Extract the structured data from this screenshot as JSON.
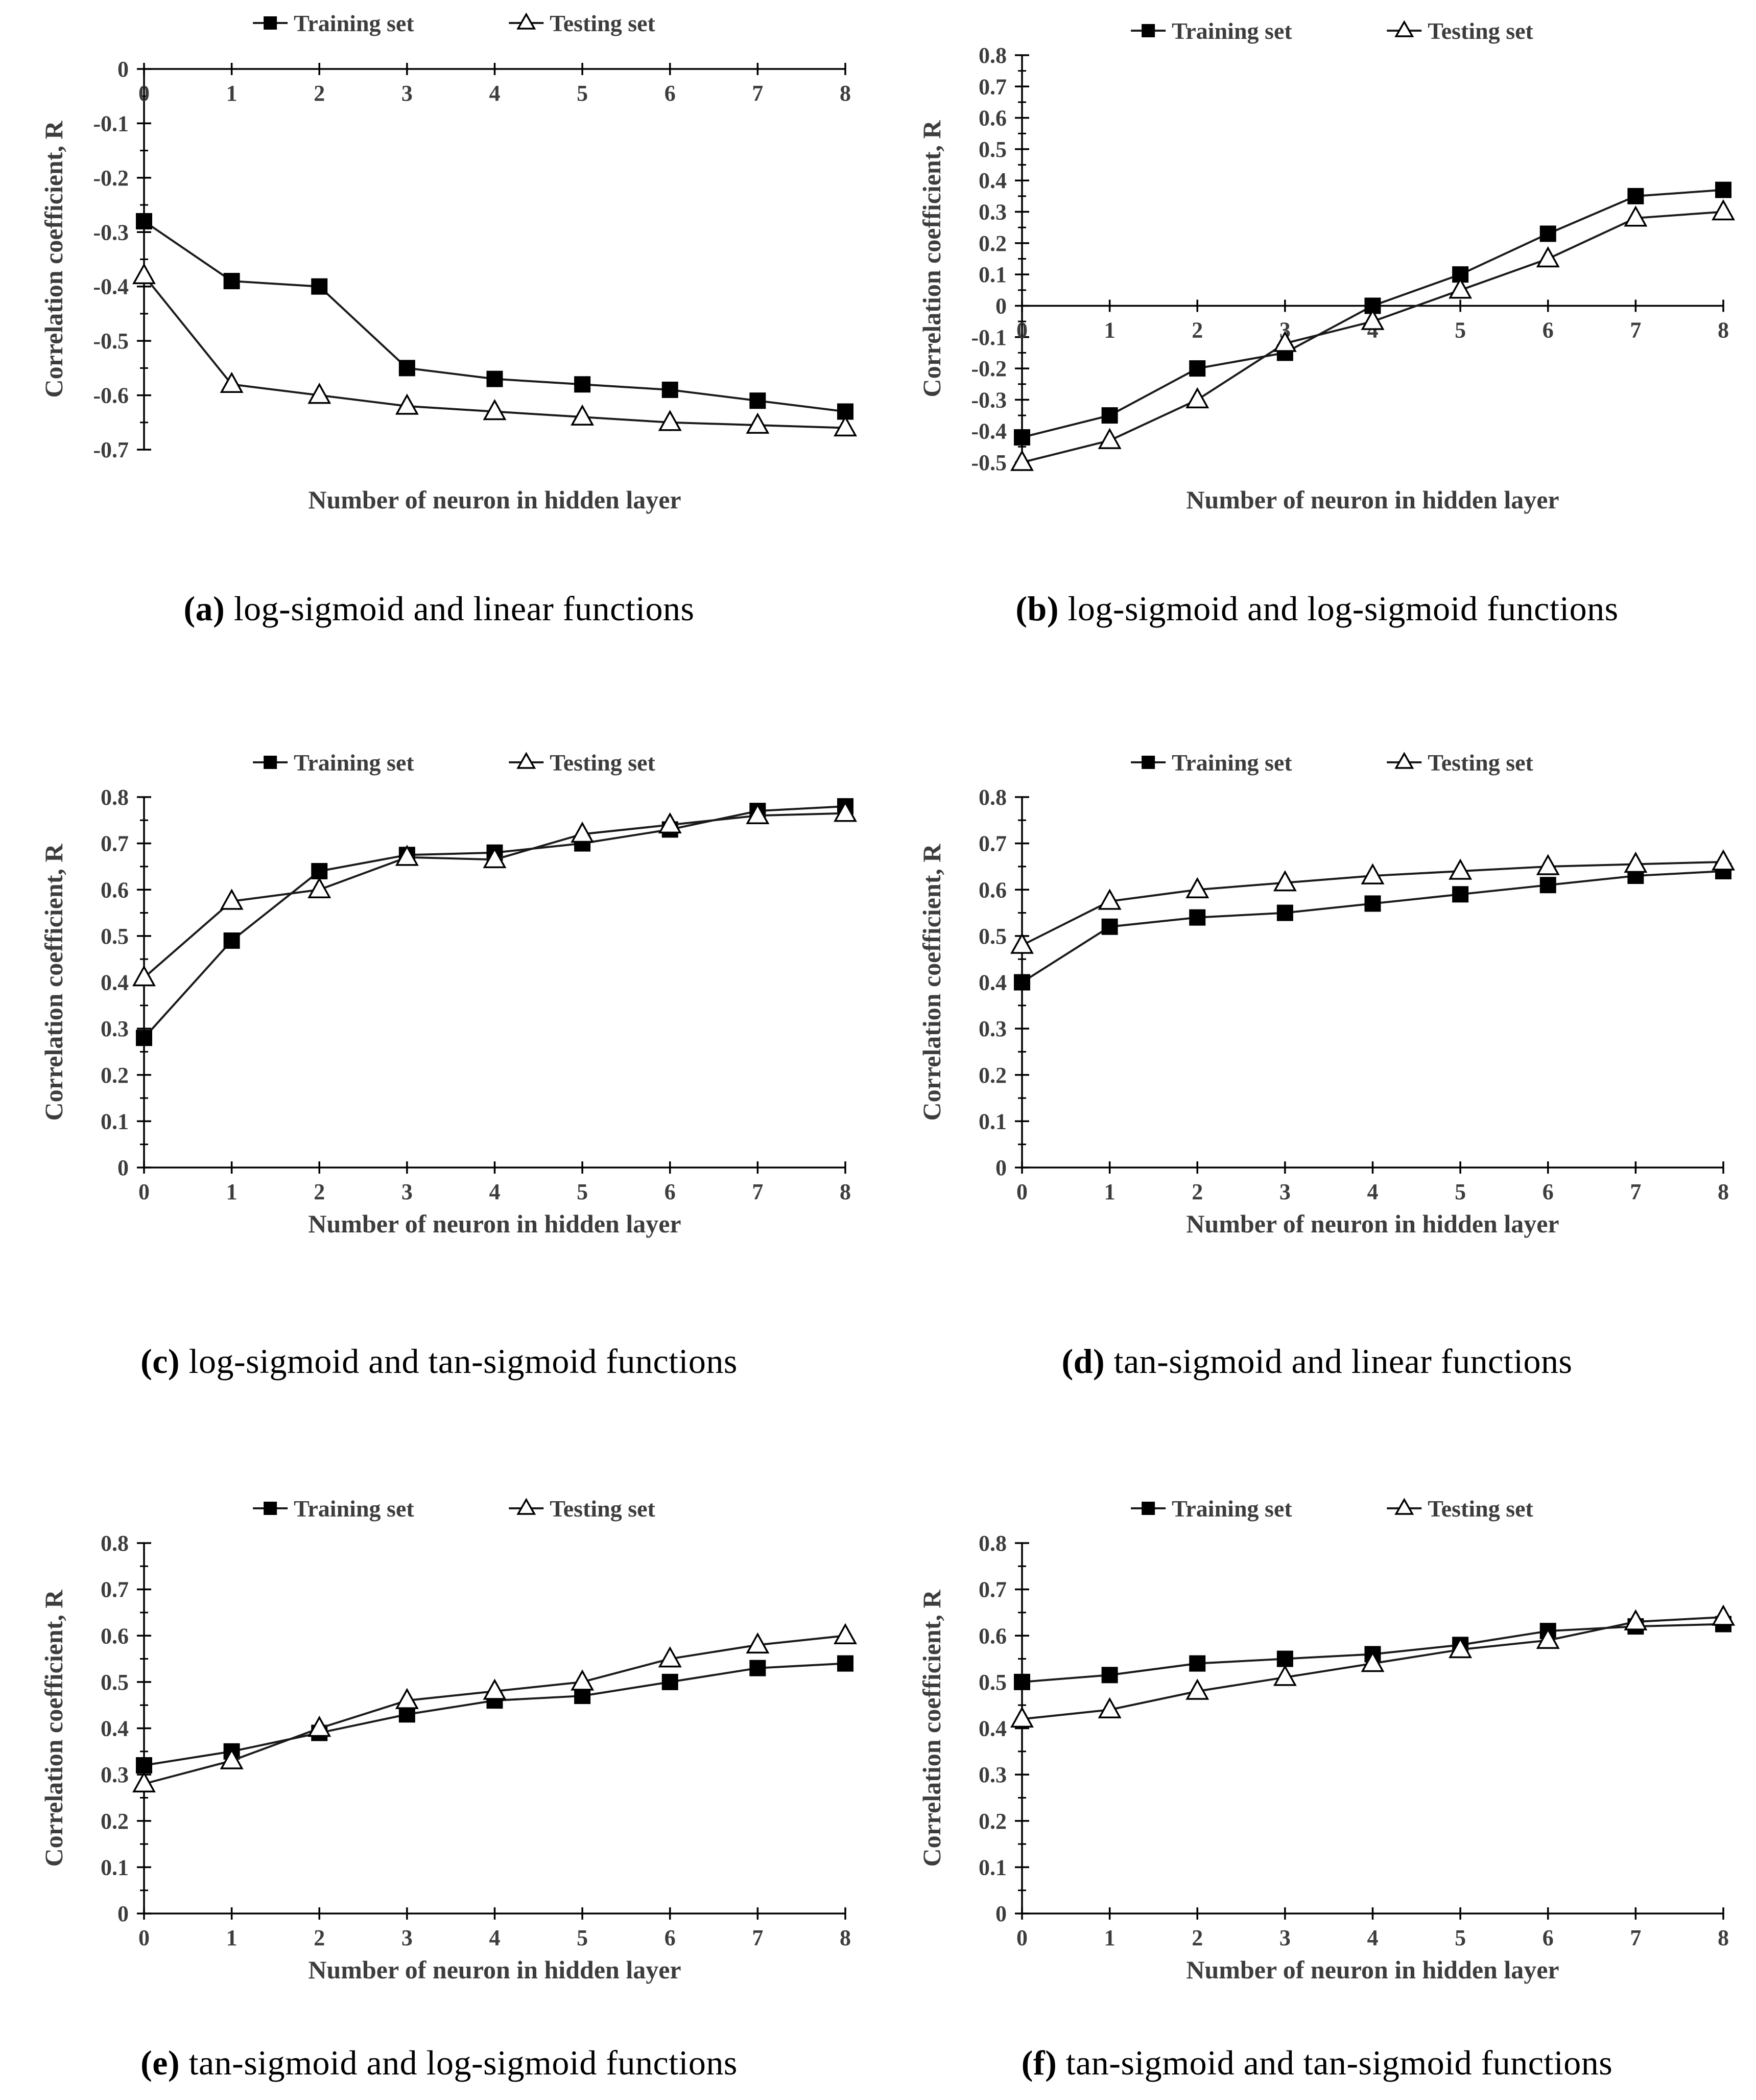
{
  "figure": {
    "x_axis_title": "Number of neuron in hidden layer",
    "y_axis_title": "Correlation coefficient, R",
    "legend": {
      "training_label": "Training set",
      "testing_label": "Testing set"
    },
    "colors": {
      "line": "#1a1a1a",
      "axis": "#000000",
      "text": "#3d3d3d",
      "marker_fill": "#000000",
      "marker_open_fill": "#ffffff",
      "background": "#ffffff"
    }
  },
  "chart_data": [
    {
      "id": "a",
      "type": "line",
      "caption_label": "(a)",
      "caption_text": "log-sigmoid and linear functions",
      "xlabel": "Number of neuron in hidden layer",
      "ylabel": "Correlation coefficient, R",
      "x": [
        0,
        1,
        2,
        3,
        4,
        5,
        6,
        7,
        8
      ],
      "xlim": [
        0,
        8
      ],
      "ylim": [
        -0.7,
        0
      ],
      "yticks": [
        0,
        -0.1,
        -0.2,
        -0.3,
        -0.4,
        -0.5,
        -0.6,
        -0.7
      ],
      "grid": false,
      "legend_position": "top",
      "series": [
        {
          "name": "Training set",
          "marker": "square",
          "values": [
            -0.28,
            -0.39,
            -0.4,
            -0.55,
            -0.57,
            -0.58,
            -0.59,
            -0.61,
            -0.63
          ]
        },
        {
          "name": "Testing set",
          "marker": "triangle",
          "values": [
            -0.38,
            -0.58,
            -0.6,
            -0.62,
            -0.63,
            -0.64,
            -0.65,
            -0.655,
            -0.66
          ]
        }
      ]
    },
    {
      "id": "b",
      "type": "line",
      "caption_label": "(b)",
      "caption_text": "log-sigmoid and log-sigmoid functions",
      "xlabel": "Number of neuron in hidden layer",
      "ylabel": "Correlation coefficient, R",
      "x": [
        0,
        1,
        2,
        3,
        4,
        5,
        6,
        7,
        8
      ],
      "xlim": [
        0,
        8
      ],
      "ylim": [
        -0.5,
        0.8
      ],
      "yticks": [
        0.8,
        0.7,
        0.6,
        0.5,
        0.4,
        0.3,
        0.2,
        0.1,
        0,
        -0.1,
        -0.2,
        -0.3,
        -0.4,
        -0.5
      ],
      "grid": false,
      "legend_position": "top",
      "series": [
        {
          "name": "Training set",
          "marker": "square",
          "values": [
            -0.42,
            -0.35,
            -0.2,
            -0.15,
            0.0,
            0.1,
            0.23,
            0.35,
            0.37
          ]
        },
        {
          "name": "Testing set",
          "marker": "triangle",
          "values": [
            -0.5,
            -0.43,
            -0.3,
            -0.12,
            -0.05,
            0.05,
            0.15,
            0.28,
            0.3
          ]
        }
      ]
    },
    {
      "id": "c",
      "type": "line",
      "caption_label": "(c)",
      "caption_text": "log-sigmoid and tan-sigmoid functions",
      "xlabel": "Number of neuron in hidden layer",
      "ylabel": "Correlation coefficient, R",
      "x": [
        0,
        1,
        2,
        3,
        4,
        5,
        6,
        7,
        8
      ],
      "xlim": [
        0,
        8
      ],
      "ylim": [
        0,
        0.8
      ],
      "yticks": [
        0.8,
        0.7,
        0.6,
        0.5,
        0.4,
        0.3,
        0.2,
        0.1,
        0
      ],
      "grid": false,
      "legend_position": "top",
      "series": [
        {
          "name": "Training set",
          "marker": "square",
          "values": [
            0.28,
            0.49,
            0.64,
            0.675,
            0.68,
            0.7,
            0.73,
            0.77,
            0.78
          ]
        },
        {
          "name": "Testing set",
          "marker": "triangle",
          "values": [
            0.41,
            0.575,
            0.6,
            0.67,
            0.665,
            0.72,
            0.74,
            0.76,
            0.765
          ]
        }
      ]
    },
    {
      "id": "d",
      "type": "line",
      "caption_label": "(d)",
      "caption_text": "tan-sigmoid and linear functions",
      "xlabel": "Number of neuron in hidden layer",
      "ylabel": "Correlation coefficient, R",
      "x": [
        0,
        1,
        2,
        3,
        4,
        5,
        6,
        7,
        8
      ],
      "xlim": [
        0,
        8
      ],
      "ylim": [
        0,
        0.8
      ],
      "yticks": [
        0.8,
        0.7,
        0.6,
        0.5,
        0.4,
        0.3,
        0.2,
        0.1,
        0
      ],
      "grid": false,
      "legend_position": "top",
      "series": [
        {
          "name": "Training set",
          "marker": "square",
          "values": [
            0.4,
            0.52,
            0.54,
            0.55,
            0.57,
            0.59,
            0.61,
            0.63,
            0.64
          ]
        },
        {
          "name": "Testing set",
          "marker": "triangle",
          "values": [
            0.48,
            0.575,
            0.6,
            0.615,
            0.63,
            0.64,
            0.65,
            0.655,
            0.66
          ]
        }
      ]
    },
    {
      "id": "e",
      "type": "line",
      "caption_label": "(e)",
      "caption_text": "tan-sigmoid and log-sigmoid functions",
      "xlabel": "Number of neuron in hidden layer",
      "ylabel": "Correlation coefficient, R",
      "x": [
        0,
        1,
        2,
        3,
        4,
        5,
        6,
        7,
        8
      ],
      "xlim": [
        0,
        8
      ],
      "ylim": [
        0,
        0.8
      ],
      "yticks": [
        0.8,
        0.7,
        0.6,
        0.5,
        0.4,
        0.3,
        0.2,
        0.1,
        0
      ],
      "grid": false,
      "legend_position": "top",
      "series": [
        {
          "name": "Training set",
          "marker": "square",
          "values": [
            0.32,
            0.35,
            0.39,
            0.43,
            0.46,
            0.47,
            0.5,
            0.53,
            0.54
          ]
        },
        {
          "name": "Testing set",
          "marker": "triangle",
          "values": [
            0.28,
            0.33,
            0.4,
            0.46,
            0.48,
            0.5,
            0.55,
            0.58,
            0.6
          ]
        }
      ]
    },
    {
      "id": "f",
      "type": "line",
      "caption_label": "(f)",
      "caption_text": "tan-sigmoid and tan-sigmoid functions",
      "xlabel": "Number of neuron in hidden layer",
      "ylabel": "Correlation coefficient, R",
      "x": [
        0,
        1,
        2,
        3,
        4,
        5,
        6,
        7,
        8
      ],
      "xlim": [
        0,
        8
      ],
      "ylim": [
        0,
        0.8
      ],
      "yticks": [
        0.8,
        0.7,
        0.6,
        0.5,
        0.4,
        0.3,
        0.2,
        0.1,
        0
      ],
      "grid": false,
      "legend_position": "top",
      "series": [
        {
          "name": "Training set",
          "marker": "square",
          "values": [
            0.5,
            0.515,
            0.54,
            0.55,
            0.56,
            0.58,
            0.61,
            0.62,
            0.625
          ]
        },
        {
          "name": "Testing set",
          "marker": "triangle",
          "values": [
            0.42,
            0.44,
            0.48,
            0.51,
            0.54,
            0.57,
            0.59,
            0.63,
            0.64
          ]
        }
      ]
    }
  ]
}
